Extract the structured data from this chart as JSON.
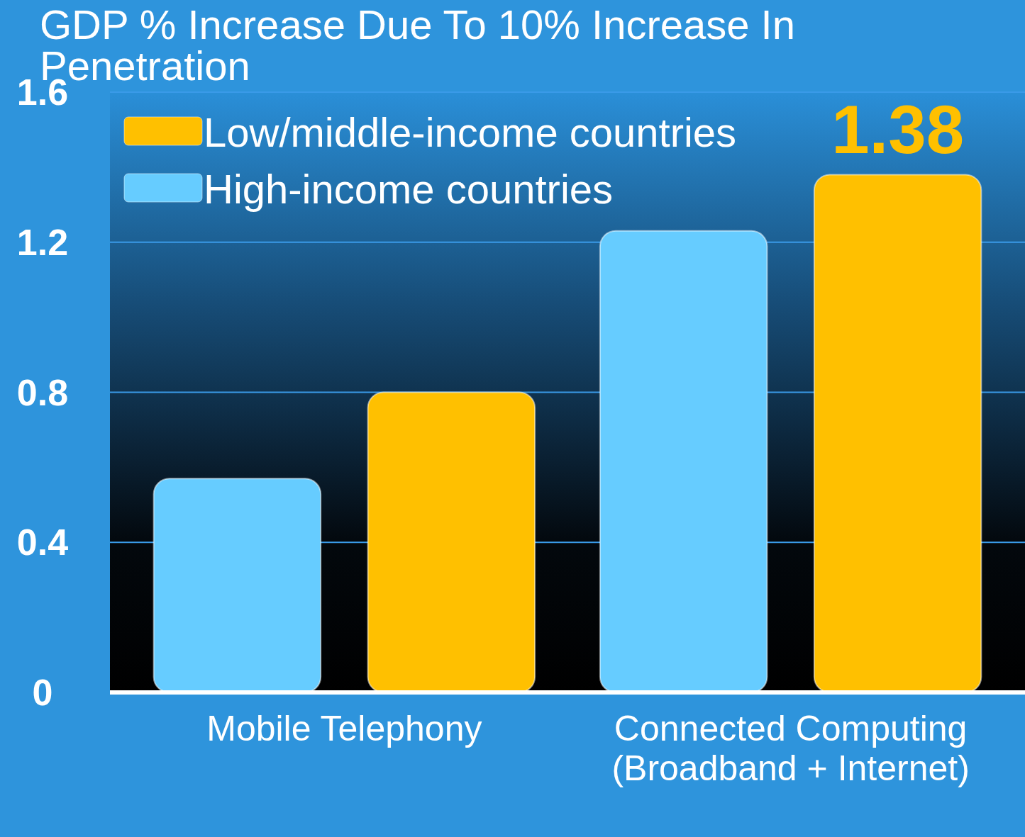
{
  "chart_data": {
    "type": "bar",
    "title": "GDP % Increase Due To 10% Increase In Penetration",
    "categories": [
      "Mobile Telephony",
      "Connected Computing (Broadband + Internet)"
    ],
    "series": [
      {
        "name": "High-income countries",
        "color": "#66ccff",
        "values": [
          0.57,
          1.23
        ]
      },
      {
        "name": "Low/middle-income countries",
        "color": "#ffc000",
        "values": [
          0.8,
          1.38
        ],
        "value_labels": [
          null,
          "1.38"
        ]
      }
    ],
    "ylim": [
      0,
      1.6
    ],
    "yticks": [
      0,
      0.4,
      0.8,
      1.2,
      1.6
    ],
    "grid": "y",
    "legend": "top left"
  }
}
